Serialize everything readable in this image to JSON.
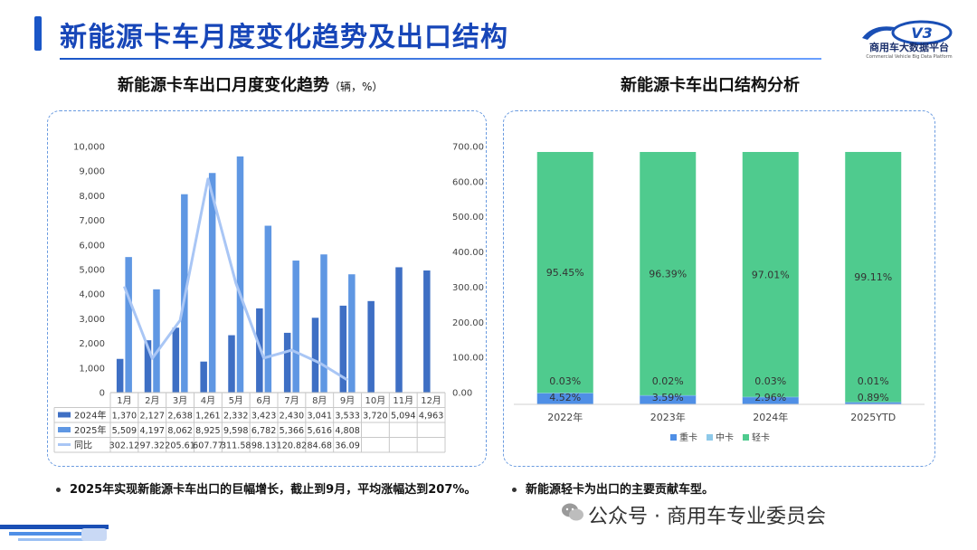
{
  "header": {
    "title": "新能源卡车月度变化趋势及出口结构",
    "logo_name": "商用车大数据平台",
    "logo_sub": "Commercial Vehicle Big Data Platform",
    "logo_mark": "V3"
  },
  "left": {
    "subtitle": "新能源卡车出口月度变化趋势",
    "subtitle_unit": "（辆，%）",
    "note": "2025年实现新能源卡车出口的巨幅增长，截止到9月，平均涨幅达到207%。"
  },
  "right": {
    "subtitle": "新能源卡车出口结构分析",
    "note": "新能源轻卡为出口的主要贡献车型。"
  },
  "footer": {
    "wechat": "公众号 · 商用车专业委员会"
  },
  "colors": {
    "bar2024": "#3e6fc4",
    "bar2025": "#5f97e3",
    "line": "#a9c6f5",
    "heavy": "#4f8fe6",
    "medium": "#8ec9e9",
    "light": "#4fcb8e"
  },
  "chart_data": [
    {
      "type": "bar",
      "title": "新能源卡车出口月度变化趋势",
      "categories": [
        "1月",
        "2月",
        "3月",
        "4月",
        "5月",
        "6月",
        "7月",
        "8月",
        "9月",
        "10月",
        "11月",
        "12月"
      ],
      "series": [
        {
          "name": "2024年",
          "kind": "bar",
          "axis": "left",
          "values": [
            1370,
            2127,
            2638,
            1261,
            2332,
            3423,
            2430,
            3041,
            3533,
            3720,
            5094,
            4963
          ]
        },
        {
          "name": "2025年",
          "kind": "bar",
          "axis": "left",
          "values": [
            5509,
            4197,
            8062,
            8925,
            9598,
            6782,
            5366,
            5616,
            4808,
            null,
            null,
            null
          ]
        },
        {
          "name": "同比",
          "kind": "line",
          "axis": "right",
          "values": [
            302.12,
            97.32,
            205.61,
            607.77,
            311.58,
            98.13,
            120.82,
            84.68,
            36.09,
            null,
            null,
            null
          ]
        }
      ],
      "table_labels": {
        "2024年": [
          "1,370",
          "2,127",
          "2,638",
          "1,261",
          "2,332",
          "3,423",
          "2,430",
          "3,041",
          "3,533",
          "3,720",
          "5,094",
          "4,963"
        ],
        "2025年": [
          "5,509",
          "4,197",
          "8,062",
          "8,925",
          "9,598",
          "6,782",
          "5,366",
          "5,616",
          "4,808",
          "",
          "",
          ""
        ],
        "同比": [
          "302.12",
          "97.32",
          "205.61",
          "607.77",
          "311.58",
          "98.13",
          "120.82",
          "84.68",
          "36.09",
          "",
          "",
          ""
        ]
      },
      "ylim": [
        0,
        10000
      ],
      "yticks": [
        "0",
        "1,000",
        "2,000",
        "3,000",
        "4,000",
        "5,000",
        "6,000",
        "7,000",
        "8,000",
        "9,000",
        "10,000"
      ],
      "y2lim": [
        0,
        700
      ],
      "y2ticks": [
        "0.00",
        "100.00",
        "200.00",
        "300.00",
        "400.00",
        "500.00",
        "600.00",
        "700.00"
      ]
    },
    {
      "type": "bar",
      "title": "新能源卡车出口结构分析",
      "stacked": true,
      "categories": [
        "2022年",
        "2023年",
        "2024年",
        "2025YTD"
      ],
      "series": [
        {
          "name": "重卡",
          "values": [
            4.52,
            3.59,
            2.96,
            0.89
          ]
        },
        {
          "name": "中卡",
          "values": [
            0.03,
            0.02,
            0.03,
            0.01
          ]
        },
        {
          "name": "轻卡",
          "values": [
            95.45,
            96.39,
            97.01,
            99.11
          ]
        }
      ],
      "labels": {
        "重卡": [
          "4.52%",
          "3.59%",
          "2.96%",
          "0.89%"
        ],
        "中卡": [
          "0.03%",
          "0.02%",
          "0.03%",
          "0.01%"
        ],
        "轻卡": [
          "95.45%",
          "96.39%",
          "97.01%",
          "99.11%"
        ]
      },
      "ylim": [
        0,
        100
      ],
      "legend": "bottom"
    }
  ]
}
